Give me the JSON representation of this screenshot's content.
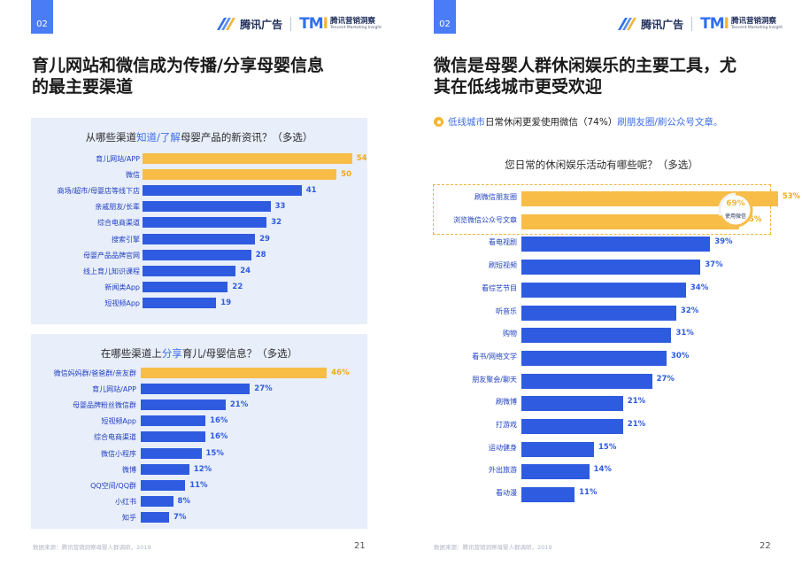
{
  "left_page": {
    "tag": "02",
    "logo_ad": "腾讯广告",
    "logo_tmi_mark": "TMI",
    "logo_tmi_cn": "腾讯营销洞察",
    "logo_tmi_en": "Tencent Marketing Insight",
    "title_line1": "育儿网站和微信成为传播/分享母婴信息",
    "title_line2": "的最主要渠道",
    "footer": "数据来源：腾讯营销洞察母婴人群调研，2019",
    "page_number": "21"
  },
  "right_page": {
    "tag": "02",
    "logo_ad": "腾讯广告",
    "logo_tmi_mark": "TMI",
    "logo_tmi_cn": "腾讯营销洞察",
    "logo_tmi_en": "Tencent Marketing Insight",
    "title_line1": "微信是母婴人群休闲娱乐的主要工具，尤",
    "title_line2": "其在低线城市更受欢迎",
    "subtitle_part1": "低线城市",
    "subtitle_part2": "日常休闲更爱使用微信（74%）",
    "subtitle_part3": "刷朋友圈/刷公众号文章。",
    "donut_value": "69%",
    "donut_fraction": 0.69,
    "donut_label": "使用微信",
    "footer": "数据来源：腾讯营销洞察母婴人群调研，2019",
    "page_number": "22"
  },
  "colors": {
    "blue": "#2f5be0",
    "yellow": "#f7bd47",
    "accent": "#3e6fe6",
    "panel": "#e8eefa"
  },
  "chart_data": [
    {
      "type": "bar",
      "orientation": "horizontal",
      "title_parts": [
        "从哪些渠道",
        "知道/了解",
        "母婴产品的新资讯？（多选）"
      ],
      "categories": [
        "育儿网站/APP",
        "微信",
        "商场/超市/母婴店等线下店",
        "亲戚朋友/长辈",
        "综合电商渠道",
        "搜索引擎",
        "母婴产品品牌官网",
        "线上育儿知识课程",
        "新闻类App",
        "短视频App"
      ],
      "values": [
        54,
        50,
        41,
        33,
        32,
        29,
        28,
        24,
        22,
        19
      ],
      "value_labels": [
        "54",
        "50",
        "41",
        "33",
        "32",
        "29",
        "28",
        "24",
        "22",
        "19"
      ],
      "highlighted": [
        true,
        true,
        false,
        false,
        false,
        false,
        false,
        false,
        false,
        false
      ],
      "xlim": [
        0,
        60
      ]
    },
    {
      "type": "bar",
      "orientation": "horizontal",
      "title_parts": [
        "在哪些渠道上",
        "分享",
        "育儿/母婴信息？（多选）"
      ],
      "categories": [
        "微信妈妈群/爸爸群/亲友群",
        "育儿网站/APP",
        "母婴品牌粉丝微信群",
        "短视频App",
        "综合电商渠道",
        "微信小程序",
        "微博",
        "QQ空间/QQ群",
        "小红书",
        "知乎"
      ],
      "values": [
        46,
        27,
        21,
        16,
        16,
        15,
        12,
        11,
        8,
        7
      ],
      "value_labels": [
        "46%",
        "27%",
        "21%",
        "16%",
        "16%",
        "15%",
        "12%",
        "11%",
        "8%",
        "7%"
      ],
      "highlighted": [
        true,
        false,
        false,
        false,
        false,
        false,
        false,
        false,
        false,
        false
      ],
      "xlim": [
        0,
        60
      ]
    },
    {
      "type": "bar",
      "orientation": "horizontal",
      "title": "您日常的休闲娱乐活动有哪些呢？（多选）",
      "categories": [
        "刷微信朋友圈",
        "浏览微信公众号文章",
        "看电视剧",
        "刷短视频",
        "看综艺节目",
        "听音乐",
        "购物",
        "看书/网络文学",
        "朋友聚会/聊天",
        "刷微博",
        "打游戏",
        "运动健身",
        "外出旅游",
        "看动漫"
      ],
      "values": [
        53,
        45,
        39,
        37,
        34,
        32,
        31,
        30,
        27,
        21,
        21,
        15,
        14,
        11
      ],
      "value_labels": [
        "53%",
        "45%",
        "39%",
        "37%",
        "34%",
        "32%",
        "31%",
        "30%",
        "27%",
        "21%",
        "21%",
        "15%",
        "14%",
        "11%"
      ],
      "highlighted": [
        true,
        true,
        false,
        false,
        false,
        false,
        false,
        false,
        false,
        false,
        false,
        false,
        false,
        false
      ],
      "xlim": [
        0,
        60
      ]
    }
  ]
}
